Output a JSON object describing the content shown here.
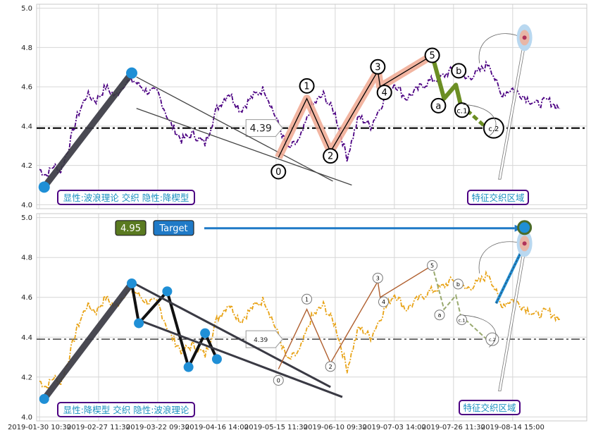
{
  "chart_data": [
    {
      "type": "line",
      "panel": "top",
      "annotation_box": "显性:波浪理论 交织 隐性:降楔型",
      "zone_label": "特征交织区域",
      "ylim": [
        3.98,
        5.02
      ],
      "yticks": [
        "4.0",
        "4.2",
        "4.4",
        "4.6",
        "4.8",
        "5.0"
      ],
      "hline_value": 4.39,
      "hline_label": "4.39",
      "series": [
        {
          "color": "#4b0082",
          "style": "dashdot",
          "x_index": [
            0,
            3,
            6,
            9,
            12,
            16,
            20,
            24,
            28,
            32,
            36,
            40,
            45,
            50,
            55,
            60,
            65,
            70,
            75,
            80,
            85,
            90,
            95,
            100,
            105,
            110,
            115,
            120,
            125,
            130,
            135,
            140,
            145,
            150,
            155,
            160,
            165,
            170,
            175,
            180,
            185,
            190,
            195,
            200,
            205,
            210,
            215,
            220
          ],
          "values": [
            4.18,
            4.15,
            4.2,
            4.17,
            4.28,
            4.45,
            4.56,
            4.53,
            4.6,
            4.55,
            4.62,
            4.63,
            4.58,
            4.57,
            4.42,
            4.33,
            4.36,
            4.31,
            4.49,
            4.57,
            4.48,
            4.55,
            4.59,
            4.44,
            4.28,
            4.33,
            4.5,
            4.56,
            4.46,
            4.24,
            4.45,
            4.4,
            4.52,
            4.62,
            4.54,
            4.59,
            4.63,
            4.65,
            4.69,
            4.64,
            4.67,
            4.72,
            4.56,
            4.59,
            4.55,
            4.51,
            4.53,
            4.49
          ]
        }
      ],
      "wave_points": [
        {
          "label": "0",
          "x_index": 101,
          "value": 4.24
        },
        {
          "label": "1",
          "x_index": 113,
          "value": 4.54
        },
        {
          "label": "2",
          "x_index": 123,
          "value": 4.27
        },
        {
          "label": "3",
          "x_index": 143,
          "value": 4.68
        },
        {
          "label": "4",
          "x_index": 144,
          "value": 4.6
        },
        {
          "label": "5",
          "x_index": 166,
          "value": 4.76
        },
        {
          "label": "a",
          "x_index": 171,
          "value": 4.54
        },
        {
          "label": "b",
          "x_index": 176,
          "value": 4.61
        },
        {
          "label": "c.1",
          "x_index": 178,
          "value": 4.51
        },
        {
          "label": "c.2",
          "x_index": 189,
          "value": 4.39
        }
      ],
      "pattern_points": [
        {
          "x_index": 2,
          "value": 4.09
        },
        {
          "x_index": 39,
          "value": 4.67
        }
      ]
    },
    {
      "type": "line",
      "panel": "bottom",
      "annotation_box": "显性:降楔型 交织 隐性:波浪理论",
      "zone_label": "特征交织区域",
      "ylim": [
        3.98,
        5.02
      ],
      "yticks": [
        "4.0",
        "4.2",
        "4.4",
        "4.6",
        "4.8",
        "5.0"
      ],
      "hline_value": 4.39,
      "hline_label": "4.39",
      "price_badge": "4.95",
      "target_badge": "Target",
      "target_value": 4.95,
      "series": [
        {
          "color": "#e8a317",
          "style": "dashdot",
          "x_index": [
            0,
            3,
            6,
            9,
            12,
            16,
            20,
            24,
            28,
            32,
            36,
            40,
            45,
            50,
            55,
            60,
            65,
            70,
            75,
            80,
            85,
            90,
            95,
            100,
            105,
            110,
            115,
            120,
            125,
            130,
            135,
            140,
            145,
            150,
            155,
            160,
            165,
            170,
            175,
            180,
            185,
            190,
            195,
            200,
            205,
            210,
            215,
            220
          ],
          "values": [
            4.18,
            4.15,
            4.2,
            4.17,
            4.28,
            4.45,
            4.56,
            4.53,
            4.6,
            4.55,
            4.62,
            4.63,
            4.58,
            4.57,
            4.42,
            4.33,
            4.36,
            4.31,
            4.49,
            4.57,
            4.48,
            4.55,
            4.59,
            4.44,
            4.28,
            4.33,
            4.5,
            4.56,
            4.46,
            4.24,
            4.45,
            4.4,
            4.52,
            4.62,
            4.54,
            4.59,
            4.63,
            4.65,
            4.69,
            4.64,
            4.67,
            4.72,
            4.56,
            4.59,
            4.55,
            4.51,
            4.53,
            4.49
          ]
        }
      ],
      "wave_points": [
        {
          "label": "0",
          "x_index": 101,
          "value": 4.24
        },
        {
          "label": "1",
          "x_index": 113,
          "value": 4.54
        },
        {
          "label": "2",
          "x_index": 123,
          "value": 4.27
        },
        {
          "label": "3",
          "x_index": 143,
          "value": 4.68
        },
        {
          "label": "4",
          "x_index": 144,
          "value": 4.6
        },
        {
          "label": "5",
          "x_index": 166,
          "value": 4.76
        },
        {
          "label": "a",
          "x_index": 171,
          "value": 4.54
        },
        {
          "label": "b",
          "x_index": 176,
          "value": 4.61
        },
        {
          "label": "c.1",
          "x_index": 178,
          "value": 4.51
        },
        {
          "label": "c.2",
          "x_index": 189,
          "value": 4.39
        }
      ],
      "pattern_points": [
        {
          "x_index": 2,
          "value": 4.09
        },
        {
          "x_index": 39,
          "value": 4.67
        },
        {
          "x_index": 42,
          "value": 4.47
        },
        {
          "x_index": 54,
          "value": 4.63
        },
        {
          "x_index": 63,
          "value": 4.25
        },
        {
          "x_index": 70,
          "value": 4.42
        },
        {
          "x_index": 75,
          "value": 4.29
        }
      ]
    }
  ],
  "x_tick_labels": [
    "2019-01-30 10:30",
    "2019-02-27 11:30",
    "2019-03-22 09:30",
    "2019-04-16 14:00",
    "2019-05-15 11:30",
    "2019-06-10 09:30",
    "2019-07-03 14:00",
    "2019-07-26 11:30",
    "2019-08-14 15:00"
  ],
  "x_tick_index": [
    0,
    25,
    50,
    75,
    100,
    125,
    150,
    175,
    200
  ],
  "colors": {
    "price_top": "#4b0082",
    "price_bottom": "#e8a317",
    "wave_fill": "#f0a890",
    "green_wave": "#6b8e23",
    "marker_blue": "#1f8fd6",
    "label_blue": "#1a8fc0",
    "box_border": "#4b0082",
    "target_badge": "#1f7ac7",
    "price_badge": "#5a7a20"
  }
}
